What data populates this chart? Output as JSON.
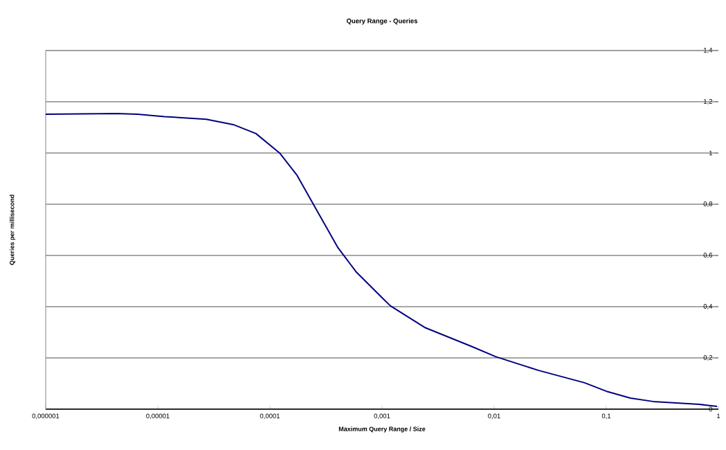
{
  "chart_data": {
    "type": "line",
    "title": "Query Range - Queries",
    "xlabel": "Maximum Query Range / Size",
    "ylabel": "Queries per millisecond",
    "x": [
      1e-06,
      4.3e-06,
      6.6e-06,
      1.15e-05,
      2.7e-05,
      4.7e-05,
      7.5e-05,
      0.000122,
      0.000174,
      0.000244,
      0.000405,
      0.00059,
      0.001,
      0.00119,
      0.0024,
      0.0062,
      0.0103,
      0.025,
      0.064,
      0.103,
      0.164,
      0.26,
      0.67,
      0.975
    ],
    "series": [
      {
        "color": "#000080",
        "values": [
          1.151,
          1.154,
          1.151,
          1.142,
          1.132,
          1.111,
          1.076,
          1.0,
          0.914,
          0.8,
          0.63,
          0.535,
          0.435,
          0.403,
          0.319,
          0.246,
          0.205,
          0.151,
          0.103,
          0.068,
          0.043,
          0.03,
          0.019,
          0.011
        ]
      }
    ],
    "log": "x",
    "xlim": [
      1e-06,
      1
    ],
    "xticks": [
      {
        "value": 1e-06,
        "label": "0,000001"
      },
      {
        "value": 1e-05,
        "label": "0,00001"
      },
      {
        "value": 0.0001,
        "label": "0,0001"
      },
      {
        "value": 0.001,
        "label": "0,001"
      },
      {
        "value": 0.01,
        "label": "0,01"
      },
      {
        "value": 0.1,
        "label": "0,1"
      },
      {
        "value": 1,
        "label": "1"
      }
    ],
    "ylim": [
      0,
      1.4
    ],
    "yticks": [
      0,
      {
        "value": 0.2,
        "label": "0,2"
      },
      {
        "value": 0.4,
        "label": "0,4"
      },
      {
        "value": 0.6,
        "label": "0,6"
      },
      {
        "value": 0.8,
        "label": "0,8"
      },
      1,
      {
        "value": 1.2,
        "label": "1,2"
      },
      {
        "value": 1.4,
        "label": "1,4"
      }
    ],
    "grid": "y",
    "marker": "none",
    "line_style": "solid"
  }
}
